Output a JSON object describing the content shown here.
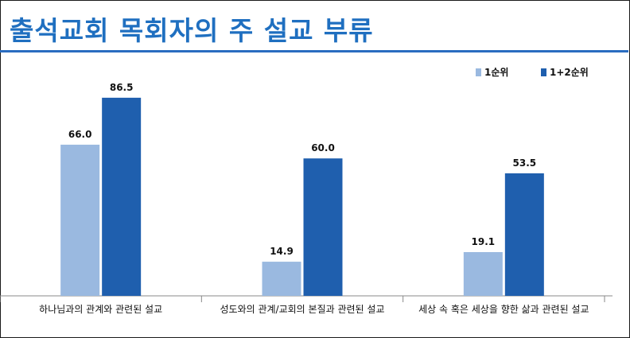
{
  "chart_data": {
    "type": "bar",
    "title": "출석교회 목회자의 주 설교 부류",
    "categories": [
      "하나님과의 관계와 관련된 설교",
      "성도와의 관계/교회의 본질과 관련된 설교",
      "세상 속 혹은 세상을 향한 삶과 관련된 설교"
    ],
    "series": [
      {
        "name": "1순위",
        "values": [
          66.0,
          14.9,
          19.1
        ],
        "color": "#9ab9e0"
      },
      {
        "name": "1+2순위",
        "values": [
          86.5,
          60.0,
          53.5
        ],
        "color": "#1f5fae"
      }
    ],
    "ylim": [
      0,
      100
    ],
    "legend": "top-right",
    "grid": false
  }
}
